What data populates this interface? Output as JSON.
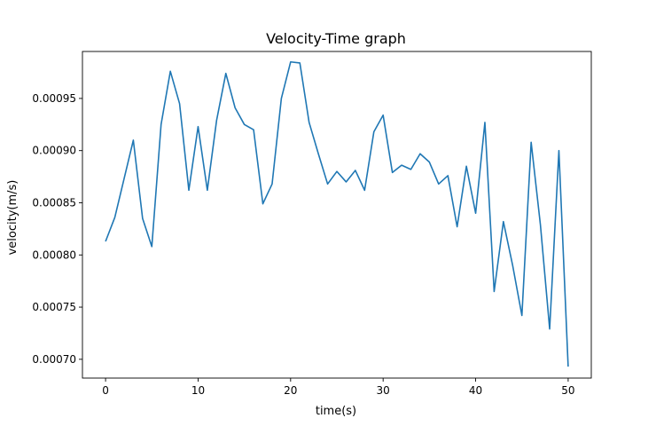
{
  "chart_data": {
    "type": "line",
    "title": "Velocity-Time graph",
    "xlabel": "time(s)",
    "ylabel": "velocity(m/s)",
    "xlim": [
      -2.5,
      52.5
    ],
    "ylim": [
      0.000682,
      0.000995
    ],
    "xticks": [
      0,
      10,
      20,
      30,
      40,
      50
    ],
    "xtick_labels": [
      "0",
      "10",
      "20",
      "30",
      "40",
      "50"
    ],
    "yticks": [
      0.0007,
      0.00075,
      0.0008,
      0.00085,
      0.0009,
      0.00095
    ],
    "ytick_labels": [
      "0.00070",
      "0.00075",
      "0.00080",
      "0.00085",
      "0.00090",
      "0.00095"
    ],
    "grid": false,
    "series": [
      {
        "color": "#1f77b4",
        "x": [
          0,
          1,
          2,
          3,
          4,
          5,
          6,
          7,
          8,
          9,
          10,
          11,
          12,
          13,
          14,
          15,
          16,
          17,
          18,
          19,
          20,
          21,
          22,
          23,
          24,
          25,
          26,
          27,
          28,
          29,
          30,
          31,
          32,
          33,
          34,
          35,
          36,
          37,
          38,
          39,
          40,
          41,
          42,
          43,
          44,
          45,
          46,
          47,
          48,
          49,
          50
        ],
        "y": [
          0.000813,
          0.000836,
          0.000873,
          0.00091,
          0.000835,
          0.000808,
          0.000925,
          0.000976,
          0.000945,
          0.000862,
          0.000923,
          0.000862,
          0.000929,
          0.000974,
          0.000941,
          0.000925,
          0.00092,
          0.000849,
          0.000868,
          0.00095,
          0.000985,
          0.000984,
          0.000927,
          0.000897,
          0.000868,
          0.00088,
          0.00087,
          0.000881,
          0.000862,
          0.000918,
          0.000934,
          0.000879,
          0.000886,
          0.000882,
          0.000897,
          0.000889,
          0.000868,
          0.000876,
          0.000827,
          0.000885,
          0.00084,
          0.000927,
          0.000765,
          0.000832,
          0.00079,
          0.000742,
          0.000908,
          0.000829,
          0.000729,
          0.0009,
          0.000693
        ]
      }
    ]
  }
}
